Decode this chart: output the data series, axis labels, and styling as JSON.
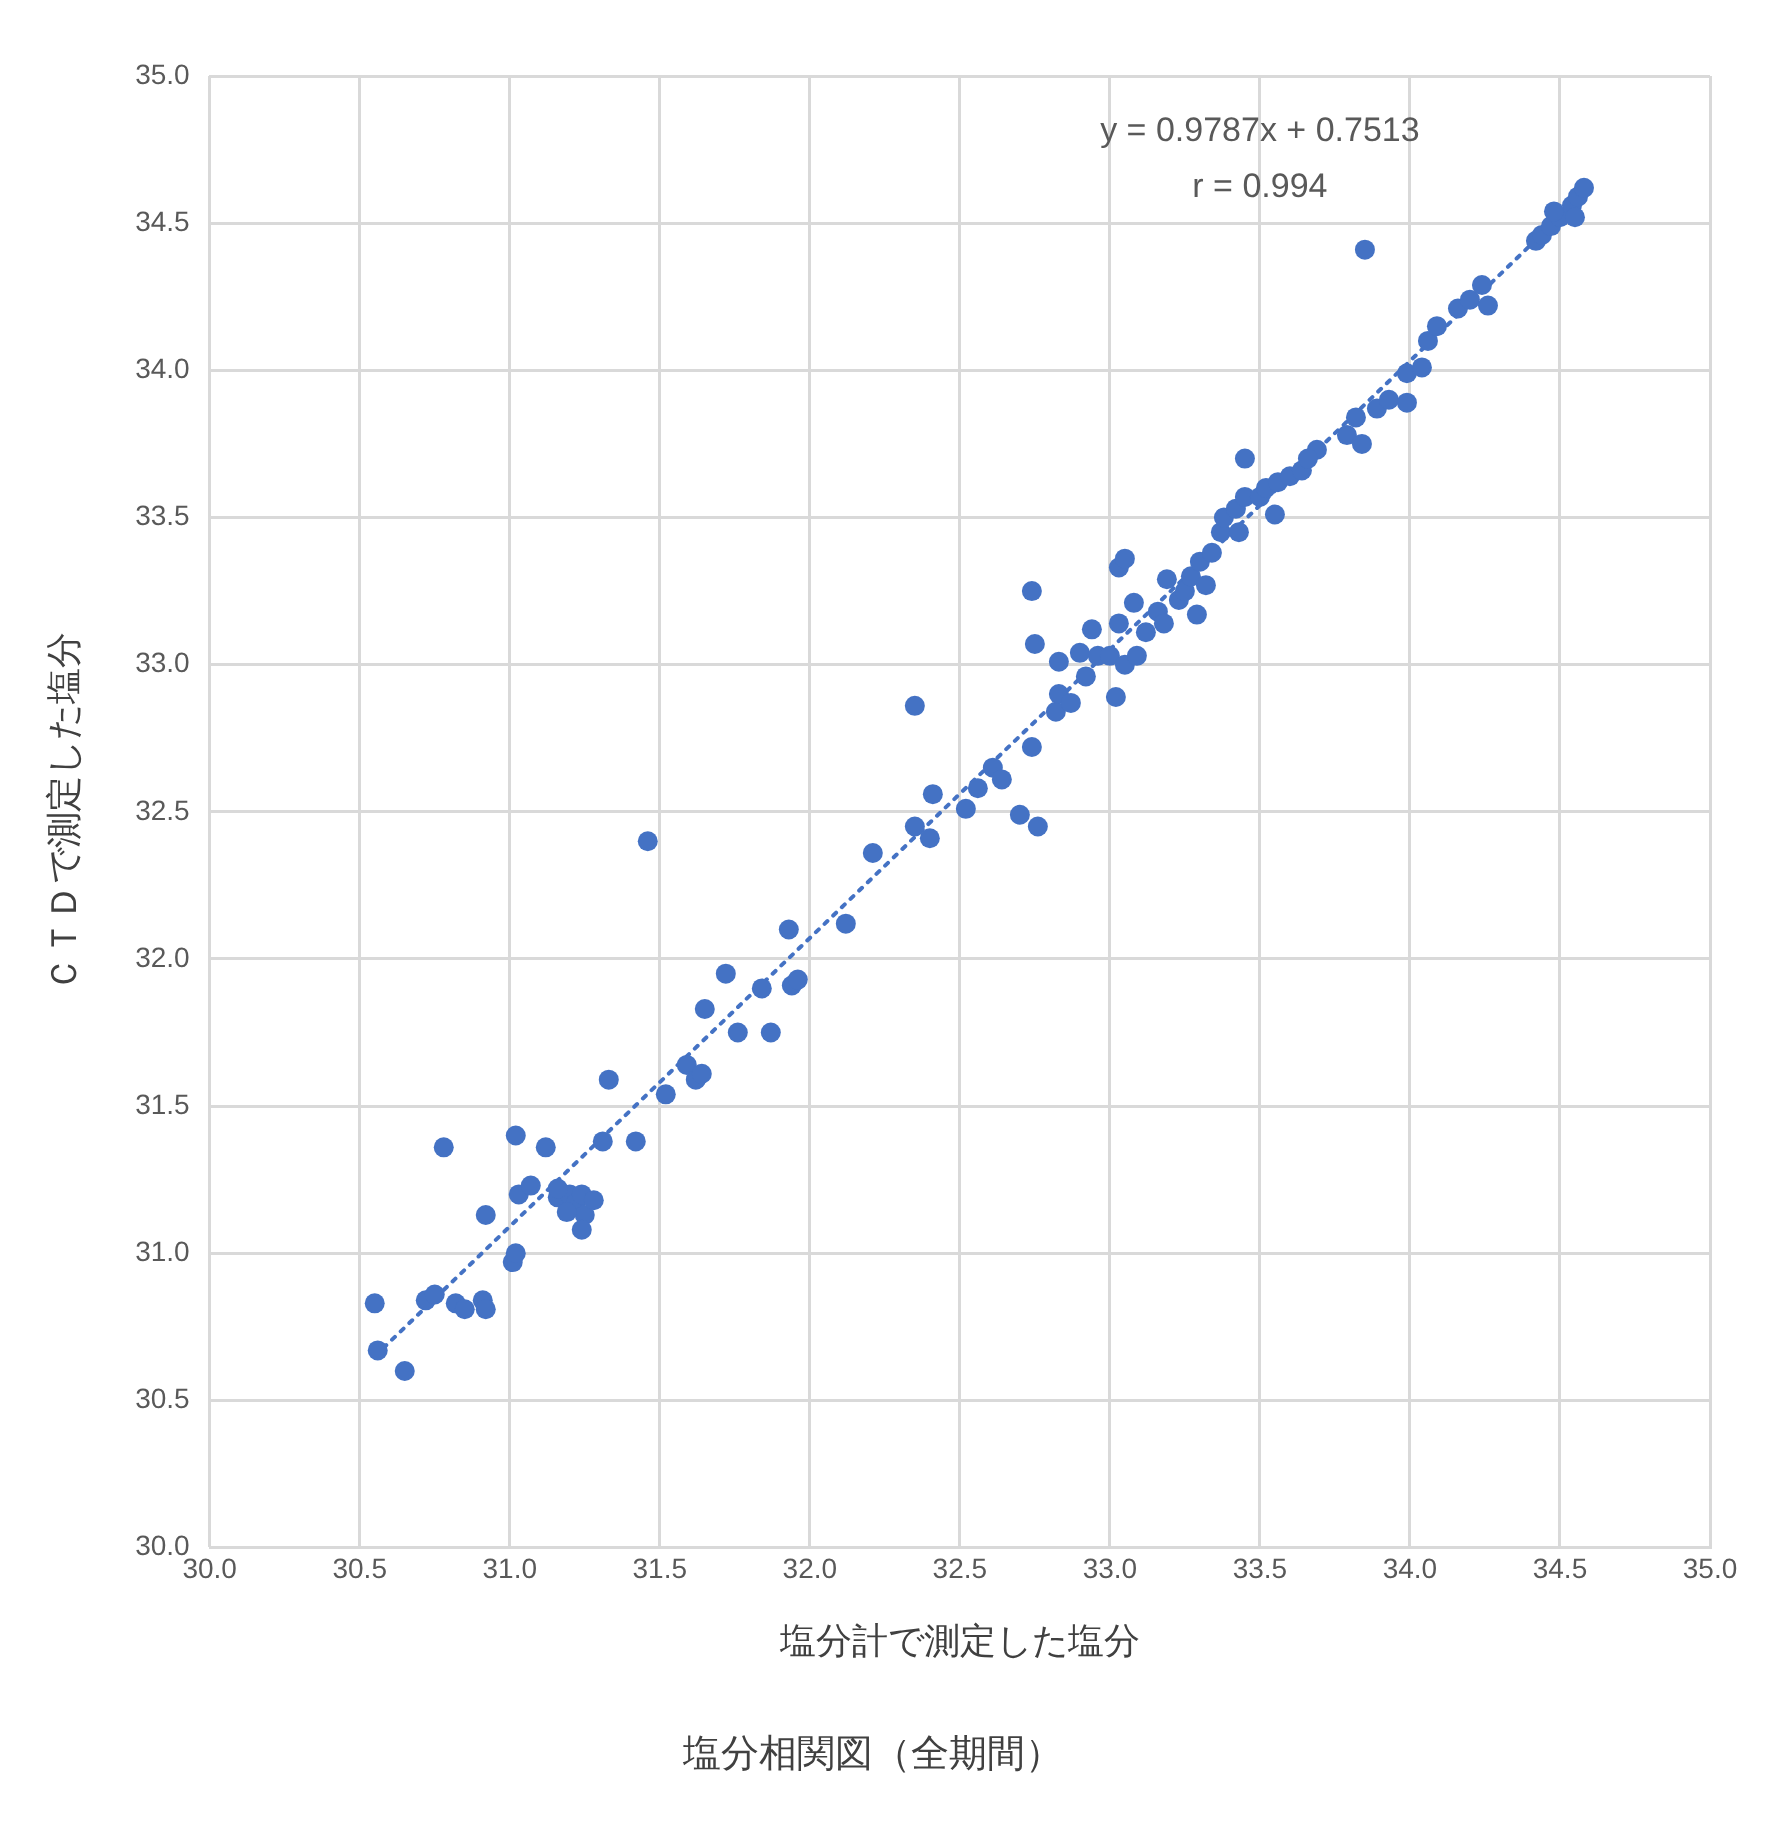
{
  "chart_data": {
    "type": "scatter",
    "title": "塩分相関図（全期間）",
    "xlabel": "塩分計で測定した塩分",
    "ylabel": "ＣＴＤで測定した塩分",
    "annotations": [
      "y = 0.9787x + 0.7513",
      "r = 0.994"
    ],
    "xlim": [
      30,
      35
    ],
    "ylim": [
      30,
      35
    ],
    "xticks": [
      {
        "value": 30,
        "label": "30.0"
      },
      {
        "value": 30.5,
        "label": "30.5"
      },
      {
        "value": 31,
        "label": "31.0"
      },
      {
        "value": 31.5,
        "label": "31.5"
      },
      {
        "value": 32,
        "label": "32.0"
      },
      {
        "value": 32.5,
        "label": "32.5"
      },
      {
        "value": 33,
        "label": "33.0"
      },
      {
        "value": 33.5,
        "label": "33.5"
      },
      {
        "value": 34,
        "label": "34.0"
      },
      {
        "value": 34.5,
        "label": "34.5"
      },
      {
        "value": 35,
        "label": "35.0"
      }
    ],
    "yticks": [
      {
        "value": 30,
        "label": "30.0"
      },
      {
        "value": 30.5,
        "label": "30.5"
      },
      {
        "value": 31,
        "label": "31.0"
      },
      {
        "value": 31.5,
        "label": "31.5"
      },
      {
        "value": 32,
        "label": "32.0"
      },
      {
        "value": 32.5,
        "label": "32.5"
      },
      {
        "value": 33,
        "label": "33.0"
      },
      {
        "value": 33.5,
        "label": "33.5"
      },
      {
        "value": 34,
        "label": "34.0"
      },
      {
        "value": 34.5,
        "label": "34.5"
      },
      {
        "value": 35,
        "label": "35.0"
      }
    ],
    "grid": true,
    "legend": false,
    "series": [
      {
        "type": "scatter",
        "color": "#4472c4",
        "marker": "circle",
        "x": [
          30.55,
          30.56,
          30.65,
          30.72,
          30.75,
          30.78,
          30.82,
          30.85,
          30.91,
          30.92,
          30.92,
          31.01,
          31.02,
          31.02,
          31.03,
          31.07,
          31.12,
          31.16,
          31.2,
          31.22,
          31.24,
          31.25,
          31.19,
          31.16,
          31.28,
          31.24,
          31.31,
          31.33,
          31.42,
          31.46,
          31.52,
          31.59,
          31.62,
          31.64,
          31.65,
          31.72,
          31.76,
          31.84,
          31.87,
          31.93,
          31.94,
          31.96,
          32.12,
          32.21,
          32.35,
          32.35,
          32.4,
          32.41,
          32.52,
          32.56,
          32.61,
          32.64,
          32.7,
          32.74,
          32.76,
          32.74,
          32.75,
          32.82,
          32.83,
          32.83,
          32.87,
          32.9,
          32.92,
          32.94,
          32.96,
          33.0,
          33.02,
          33.03,
          33.03,
          33.05,
          33.05,
          33.09,
          33.08,
          33.12,
          33.16,
          33.18,
          33.19,
          33.23,
          33.25,
          33.27,
          33.3,
          33.32,
          33.29,
          33.34,
          33.37,
          33.38,
          33.42,
          33.45,
          33.5,
          33.45,
          33.43,
          33.52,
          33.55,
          33.56,
          33.6,
          33.64,
          33.69,
          33.66,
          33.79,
          33.82,
          33.84,
          33.85,
          33.89,
          33.93,
          33.99,
          33.99,
          34.04,
          34.06,
          34.09,
          34.16,
          34.2,
          34.24,
          34.26,
          34.42,
          34.44,
          34.47,
          34.5,
          34.54,
          34.56,
          34.58,
          34.55,
          34.48
        ],
        "values": [
          30.83,
          30.67,
          30.6,
          30.84,
          30.86,
          31.36,
          30.83,
          30.81,
          30.84,
          30.81,
          31.13,
          30.97,
          31.0,
          31.4,
          31.2,
          31.23,
          31.36,
          31.19,
          31.2,
          31.17,
          31.2,
          31.13,
          31.14,
          31.22,
          31.18,
          31.08,
          31.38,
          31.59,
          31.38,
          32.4,
          31.54,
          31.64,
          31.59,
          31.61,
          31.83,
          31.95,
          31.75,
          31.9,
          31.75,
          32.1,
          31.91,
          31.93,
          32.12,
          32.36,
          32.86,
          32.45,
          32.41,
          32.56,
          32.51,
          32.58,
          32.65,
          32.61,
          32.49,
          32.72,
          32.45,
          33.25,
          33.07,
          32.84,
          32.9,
          33.01,
          32.87,
          33.04,
          32.96,
          33.12,
          33.03,
          33.03,
          32.89,
          33.14,
          33.33,
          33.36,
          33.0,
          33.03,
          33.21,
          33.11,
          33.18,
          33.14,
          33.29,
          33.22,
          33.25,
          33.3,
          33.35,
          33.27,
          33.17,
          33.38,
          33.45,
          33.5,
          33.53,
          33.57,
          33.57,
          33.7,
          33.45,
          33.6,
          33.51,
          33.62,
          33.64,
          33.66,
          33.73,
          33.7,
          33.78,
          33.84,
          33.75,
          34.41,
          33.87,
          33.9,
          33.89,
          33.99,
          34.01,
          34.1,
          34.15,
          34.21,
          34.24,
          34.29,
          34.22,
          34.44,
          34.46,
          34.49,
          34.52,
          34.56,
          34.59,
          34.62,
          34.52,
          34.54
        ]
      },
      {
        "type": "line",
        "color": "#4472c4",
        "marker": "none",
        "line_style": "dotted",
        "x": [
          30.55,
          34.58
        ],
        "values": [
          30.65,
          34.6
        ]
      }
    ]
  }
}
